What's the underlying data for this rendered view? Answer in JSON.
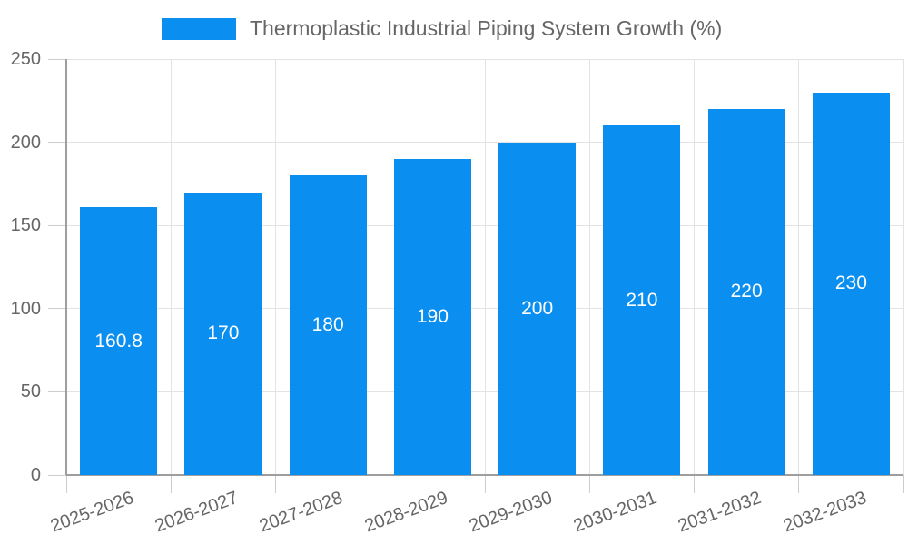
{
  "chart_data": {
    "type": "bar",
    "title": "Thermoplastic Industrial Piping System Growth (%)",
    "categories": [
      "2025-2026",
      "2026-2027",
      "2027-2028",
      "2028-2029",
      "2029-2030",
      "2030-2031",
      "2031-2032",
      "2032-2033"
    ],
    "values": [
      160.8,
      170,
      180,
      190,
      200,
      210,
      220,
      230
    ],
    "value_labels": [
      "160.8",
      "170",
      "180",
      "190",
      "200",
      "210",
      "220",
      "230"
    ],
    "xlabel": "",
    "ylabel": "",
    "ylim": [
      0,
      250
    ],
    "yticks": [
      0,
      50,
      100,
      150,
      200,
      250
    ],
    "grid": true,
    "legend_position": "top",
    "colors": {
      "bar": "#0a8ff0",
      "value_label": "#ffffff",
      "axis_text": "#666666",
      "axis_line": "#9e9e9e",
      "gridline": "#e3e3e3",
      "tick": "#cccccc"
    }
  }
}
